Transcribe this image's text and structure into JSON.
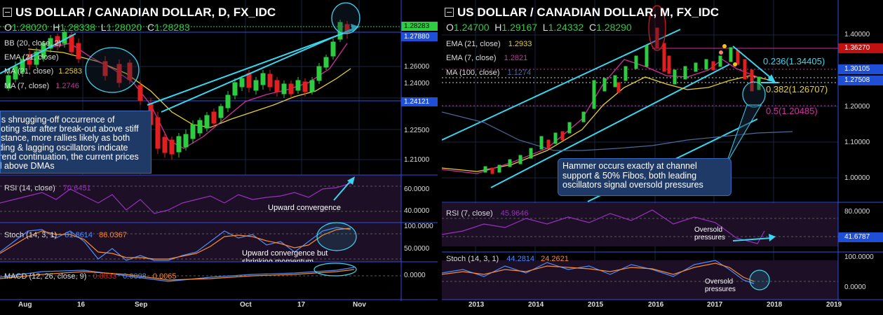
{
  "left": {
    "title": "US DOLLAR / CANADIAN DOLLAR, D, FX_IDC",
    "ohlc": {
      "o_label": "O",
      "o": "1.28020",
      "h_label": "H",
      "h": "1.28338",
      "l_label": "L",
      "l": "1.28020",
      "c_label": "C",
      "c": "1.28283"
    },
    "indicators": [
      {
        "label": "BB (20, close, 2)",
        "value": ""
      },
      {
        "label": "EMA (21, close)",
        "value": ""
      },
      {
        "label": "MA (21, close)",
        "value": "1.2583"
      },
      {
        "label": "MA (7, close)",
        "value": "1.2746"
      }
    ],
    "price_badges": [
      "1.28283",
      "1.27880",
      "1.24121"
    ],
    "price_axis": [
      "1.26000",
      "1.24000",
      "1.22500",
      "1.21000"
    ],
    "annotation": "Bulls shrugging-off occurrence of shooting star after break-out above stiff resistance, more rallies likely as both leading & lagging oscillators indicate uptrend continuation, the current prices well above DMAs",
    "rsi": {
      "label": "RSI (14, close)",
      "value": "70.6451",
      "axis": [
        "60.0000",
        "40.0000"
      ],
      "note": "Upward convergence"
    },
    "stoch": {
      "label": "Stoch (14, 3, 1)",
      "k": "81.8614",
      "d": "86.0367",
      "axis": [
        "100.0000",
        "50.0000"
      ],
      "note": "Upward convergence but shrinking momentum"
    },
    "macd": {
      "label": "MACD (12, 26, close, 9)",
      "v1": "0.0033",
      "v2": "0.0098",
      "v3": "0.0065",
      "axis": [
        "0.0000"
      ]
    },
    "time_axis": [
      "Aug",
      "16",
      "Sep",
      "Oct",
      "17",
      "Nov"
    ]
  },
  "right": {
    "title": "US DOLLAR / CANADIAN DOLLAR, M, FX_IDC",
    "ohlc": {
      "o_label": "O",
      "o": "1.24700",
      "h_label": "H",
      "h": "1.29167",
      "l_label": "L",
      "l": "1.24332",
      "c_label": "C",
      "c": "1.28290"
    },
    "indicators": [
      {
        "label": "EMA (21, close)",
        "value": "1.2933"
      },
      {
        "label": "EMA (7, close)",
        "value": "1.2821"
      },
      {
        "label": "MA (100, close)",
        "value": "1.1274"
      }
    ],
    "price_badges": [
      "1.36270",
      "1.30105",
      "1.27508"
    ],
    "price_axis": [
      "1.40000",
      "1.20000",
      "1.10000",
      "1.00000"
    ],
    "fibs": [
      "0.236(1.34405)",
      "0.382(1.26707)",
      "0.5(1.20485)"
    ],
    "annotation": "Hammer occurs exactly at channel support & 50% Fibos, both leading oscillators signal oversold pressures",
    "rsi": {
      "label": "RSI (7, close)",
      "value": "45.9646",
      "axis": [
        "80.0000"
      ],
      "badge": "41.6787",
      "note": "Oversold pressures"
    },
    "stoch": {
      "label": "Stoch (14, 3, 1)",
      "k": "44.2814",
      "d": "24.2621",
      "axis": [
        "100.0000",
        "0.0000"
      ],
      "note": "Oversold pressures"
    },
    "time_axis": [
      "2013",
      "2014",
      "2015",
      "2016",
      "2017",
      "2018",
      "2019"
    ]
  },
  "colors": {
    "bull": "#2ecc40",
    "bear": "#e02020",
    "accent": "#3ad6f0",
    "badge": "#1f4fd6",
    "rsi": "#9b30c0",
    "stoch_k": "#4a8cff",
    "stoch_d": "#ff8a2a"
  },
  "chart_data": [
    {
      "type": "line",
      "title": "US DOLLAR / CANADIAN DOLLAR, D, FX_IDC",
      "x": [
        "Aug",
        "16",
        "Sep",
        "Oct",
        "17",
        "Nov"
      ],
      "series": [],
      "ylim": [
        1.205,
        1.29
      ]
    },
    {
      "type": "line",
      "title": "US DOLLAR / CANADIAN DOLLAR, M, FX_IDC",
      "x": [
        "2013",
        "2014",
        "2015",
        "2016",
        "2017",
        "2018",
        "2019"
      ],
      "series": [],
      "ylim": [
        0.95,
        1.46
      ]
    }
  ]
}
